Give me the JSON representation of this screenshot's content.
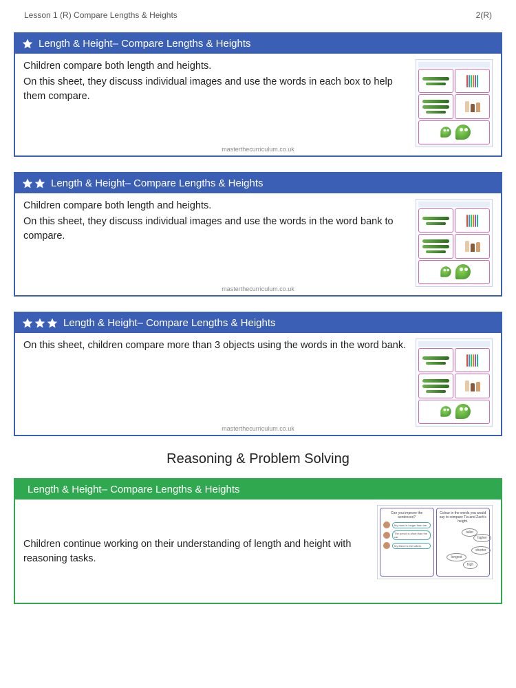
{
  "header": {
    "lesson_label": "Lesson 1 (R) Compare Lengths & Heights",
    "page_label": "2(R)"
  },
  "watermark": "masterthecurriculum.co.uk",
  "section_title": "Reasoning & Problem Solving",
  "colors": {
    "blue": "#3b5fb5",
    "green": "#2fa84f",
    "pink_border": "#d46aa8",
    "purple_border": "#7a5fbf"
  },
  "cards": [
    {
      "stars": 1,
      "color": "blue",
      "title": "Length & Height– Compare Lengths & Heights",
      "paragraphs": [
        "Children compare both length and heights.",
        "On this sheet, they discuss individual images and use the words in each box to help them compare."
      ],
      "thumb_type": "worksheet"
    },
    {
      "stars": 2,
      "color": "blue",
      "title": "Length & Height– Compare Lengths & Heights",
      "paragraphs": [
        "Children compare both length and heights.",
        "On this sheet, they discuss individual images and use the words in the word bank to compare."
      ],
      "thumb_type": "worksheet"
    },
    {
      "stars": 3,
      "color": "blue",
      "title": "Length & Height– Compare Lengths & Heights",
      "paragraphs": [
        "On this sheet, children compare more than 3 objects using the words in the word bank."
      ],
      "thumb_type": "worksheet"
    },
    {
      "stars": 0,
      "color": "green",
      "title": "Length & Height– Compare Lengths & Heights",
      "paragraphs": [
        "Children continue working on their understanding of length and height with reasoning tasks."
      ],
      "thumb_type": "rps"
    }
  ],
  "rps_thumb": {
    "left_q": "Can you improve the sentences?",
    "bubbles": [
      "My mum is longer than me.",
      "The pencil is short than the car.",
      "My friend is the tallest."
    ],
    "right_q": "Colour in the words you would say to compare Tia and Zach's height.",
    "clouds": [
      "taller",
      "higher",
      "shorter",
      "longest",
      "high"
    ]
  },
  "squiggle_colors": [
    "#e74c3c",
    "#3498db",
    "#2ecc71",
    "#e67e22",
    "#9b59b6",
    "#1abc9c"
  ]
}
